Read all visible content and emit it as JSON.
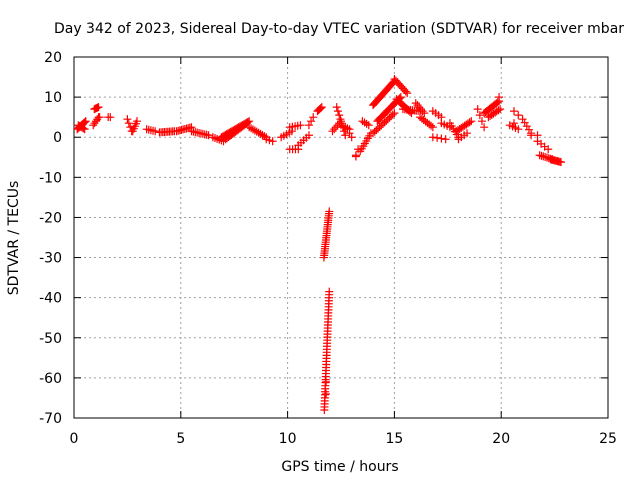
{
  "chart_data": {
    "type": "scatter",
    "title": "Day 342 of 2023, Sidereal Day-to-day VTEC variation (SDTVAR) for receiver mbar",
    "xlabel": "GPS time / hours",
    "ylabel": "SDTVAR / TECUs",
    "xlim": [
      0,
      25
    ],
    "ylim": [
      -70,
      20
    ],
    "xticks": [
      0,
      5,
      10,
      15,
      20,
      25
    ],
    "yticks": [
      20,
      10,
      0,
      -10,
      -20,
      -30,
      -40,
      -50,
      -60,
      -70
    ],
    "grid": true,
    "marker": "+",
    "color": "#ff0000",
    "series": [
      {
        "name": "SDTVAR",
        "segments": [
          {
            "x0": 0.15,
            "x1": 0.55,
            "y0": 2.0,
            "y1": 4.0,
            "n": 10
          },
          {
            "x0": 0.2,
            "x1": 0.5,
            "y0": 3.0,
            "y1": 2.0,
            "n": 6
          },
          {
            "x0": 0.9,
            "x1": 1.15,
            "y0": 3.0,
            "y1": 5.0,
            "n": 5
          },
          {
            "x0": 0.95,
            "x1": 1.15,
            "y0": 7.0,
            "y1": 7.5,
            "n": 5
          },
          {
            "x0": 1.2,
            "x1": 1.6,
            "y0": 5.0,
            "y1": 5.0,
            "n": 2
          },
          {
            "x0": 2.5,
            "x1": 2.7,
            "y0": 4.5,
            "y1": 1.5,
            "n": 4
          },
          {
            "x0": 2.75,
            "x1": 2.95,
            "y0": 1.5,
            "y1": 4.0,
            "n": 5
          },
          {
            "x0": 3.4,
            "x1": 3.8,
            "y0": 2.0,
            "y1": 1.5,
            "n": 5
          },
          {
            "x0": 4.0,
            "x1": 4.7,
            "y0": 1.2,
            "y1": 1.5,
            "n": 10
          },
          {
            "x0": 4.8,
            "x1": 5.5,
            "y0": 1.5,
            "y1": 2.5,
            "n": 10
          },
          {
            "x0": 5.5,
            "x1": 6.3,
            "y0": 1.5,
            "y1": 0.5,
            "n": 10
          },
          {
            "x0": 6.5,
            "x1": 7.0,
            "y0": 0.0,
            "y1": -1.0,
            "n": 6
          },
          {
            "x0": 6.9,
            "x1": 8.2,
            "y0": 0.0,
            "y1": 4.0,
            "n": 22
          },
          {
            "x0": 7.1,
            "x1": 8.1,
            "y0": -0.5,
            "y1": 3.5,
            "n": 16
          },
          {
            "x0": 8.2,
            "x1": 9.0,
            "y0": 2.5,
            "y1": 0.0,
            "n": 10
          },
          {
            "x0": 9.0,
            "x1": 9.3,
            "y0": -0.5,
            "y1": -1.0,
            "n": 3
          },
          {
            "x0": 9.7,
            "x1": 10.2,
            "y0": 0.0,
            "y1": 1.5,
            "n": 5
          },
          {
            "x0": 10.1,
            "x1": 10.6,
            "y0": 2.5,
            "y1": 3.0,
            "n": 5
          },
          {
            "x0": 10.1,
            "x1": 10.5,
            "y0": -3.0,
            "y1": -3.0,
            "n": 4
          },
          {
            "x0": 10.5,
            "x1": 11.0,
            "y0": -2.0,
            "y1": 0.5,
            "n": 5
          },
          {
            "x0": 11.0,
            "x1": 11.2,
            "y0": 3.0,
            "y1": 5.0,
            "n": 3
          },
          {
            "x0": 11.4,
            "x1": 11.6,
            "y0": 6.5,
            "y1": 7.5,
            "n": 5
          },
          {
            "x0": 11.7,
            "x1": 11.95,
            "y0": -30.0,
            "y1": -18.5,
            "n": 22
          },
          {
            "x0": 11.72,
            "x1": 11.95,
            "y0": -68.0,
            "y1": -38.5,
            "n": 40
          },
          {
            "x0": 12.1,
            "x1": 12.5,
            "y0": 1.5,
            "y1": 4.0,
            "n": 6
          },
          {
            "x0": 12.3,
            "x1": 12.7,
            "y0": 7.5,
            "y1": 0.5,
            "n": 8
          },
          {
            "x0": 12.5,
            "x1": 12.9,
            "y0": 3.0,
            "y1": 2.0,
            "n": 5
          },
          {
            "x0": 12.8,
            "x1": 13.0,
            "y0": 2.0,
            "y1": 0.0,
            "n": 3
          },
          {
            "x0": 13.2,
            "x1": 13.3,
            "y0": -4.5,
            "y1": -3.0,
            "n": 2
          },
          {
            "x0": 13.4,
            "x1": 13.9,
            "y0": -3.5,
            "y1": 1.0,
            "n": 8
          },
          {
            "x0": 13.5,
            "x1": 13.8,
            "y0": 4.0,
            "y1": 3.0,
            "n": 4
          },
          {
            "x0": 14.0,
            "x1": 15.0,
            "y0": 8.0,
            "y1": 14.0,
            "n": 22
          },
          {
            "x0": 14.2,
            "x1": 15.3,
            "y0": 4.0,
            "y1": 10.0,
            "n": 22
          },
          {
            "x0": 14.0,
            "x1": 15.0,
            "y0": 1.0,
            "y1": 6.0,
            "n": 14
          },
          {
            "x0": 15.0,
            "x1": 15.6,
            "y0": 14.5,
            "y1": 11.0,
            "n": 10
          },
          {
            "x0": 15.1,
            "x1": 15.8,
            "y0": 9.5,
            "y1": 6.0,
            "n": 12
          },
          {
            "x0": 15.4,
            "x1": 16.2,
            "y0": 7.0,
            "y1": 6.5,
            "n": 10
          },
          {
            "x0": 16.0,
            "x1": 16.4,
            "y0": 8.5,
            "y1": 6.0,
            "n": 6
          },
          {
            "x0": 16.2,
            "x1": 16.8,
            "y0": 5.0,
            "y1": 2.5,
            "n": 8
          },
          {
            "x0": 16.8,
            "x1": 17.2,
            "y0": 6.5,
            "y1": 5.0,
            "n": 4
          },
          {
            "x0": 16.8,
            "x1": 17.4,
            "y0": 0.0,
            "y1": -0.5,
            "n": 4
          },
          {
            "x0": 17.2,
            "x1": 17.6,
            "y0": 3.5,
            "y1": 2.5,
            "n": 4
          },
          {
            "x0": 17.6,
            "x1": 18.0,
            "y0": 3.5,
            "y1": 0.0,
            "n": 6
          },
          {
            "x0": 17.9,
            "x1": 18.6,
            "y0": 1.5,
            "y1": 4.0,
            "n": 10
          },
          {
            "x0": 18.0,
            "x1": 18.4,
            "y0": -0.5,
            "y1": 1.0,
            "n": 4
          },
          {
            "x0": 18.9,
            "x1": 19.2,
            "y0": 7.0,
            "y1": 2.5,
            "n": 4
          },
          {
            "x0": 19.2,
            "x1": 19.9,
            "y0": 6.0,
            "y1": 9.0,
            "n": 12
          },
          {
            "x0": 19.4,
            "x1": 19.95,
            "y0": 5.0,
            "y1": 7.0,
            "n": 8
          },
          {
            "x0": 20.4,
            "x1": 20.8,
            "y0": 3.0,
            "y1": 2.0,
            "n": 4
          },
          {
            "x0": 20.6,
            "x1": 20.8,
            "y0": 6.5,
            "y1": 5.5,
            "n": 2
          },
          {
            "x0": 21.0,
            "x1": 21.4,
            "y0": 4.5,
            "y1": 1.0,
            "n": 5
          },
          {
            "x0": 21.4,
            "x1": 21.7,
            "y0": 0.5,
            "y1": 0.5,
            "n": 2
          },
          {
            "x0": 21.7,
            "x1": 22.2,
            "y0": -1.0,
            "y1": -3.0,
            "n": 4
          },
          {
            "x0": 21.8,
            "x1": 22.4,
            "y0": -4.5,
            "y1": -5.5,
            "n": 8
          },
          {
            "x0": 22.3,
            "x1": 22.8,
            "y0": -5.5,
            "y1": -6.2,
            "n": 10
          }
        ],
        "points": [
          {
            "x": 1.7,
            "y": 5.0
          },
          {
            "x": 19.9,
            "y": 10.0
          },
          {
            "x": 20.6,
            "y": 3.5
          },
          {
            "x": 13.2,
            "y": -4.8
          },
          {
            "x": 11.8,
            "y": -61.0
          },
          {
            "x": 11.8,
            "y": -64.0
          }
        ]
      }
    ]
  }
}
